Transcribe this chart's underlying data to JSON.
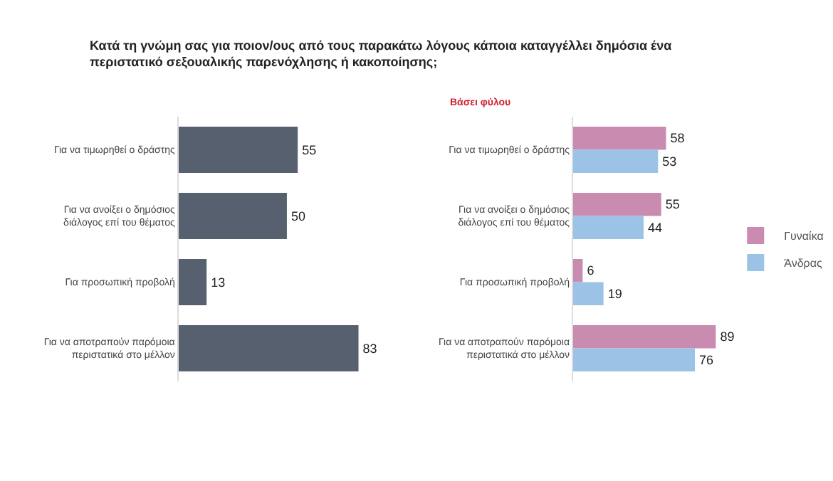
{
  "chart_data": [
    {
      "type": "bar",
      "orientation": "horizontal",
      "title": "Κατά τη γνώμη σας για ποιον/ους από τους παρακάτω λόγους κάποια καταγγέλλει δημόσια ένα περιστατικό σεξουαλικής παρενόχλησης ή κακοποίησης;",
      "categories": [
        "Για να τιμωρηθεί ο δράστης",
        "Για να ανοίξει ο δημόσιος διάλογος επί του θέματος",
        "Για προσωπική προβολή",
        "Για να αποτραπούν παρόμοια περιστατικά στο μέλλον"
      ],
      "values": [
        55,
        50,
        13,
        83
      ],
      "color": "#56606e",
      "data_labels": true,
      "legend": false
    },
    {
      "type": "bar",
      "orientation": "horizontal",
      "subtitle": "Βάσει φύλου",
      "categories": [
        "Για να τιμωρηθεί ο δράστης",
        "Για να ανοίξει ο δημόσιος διάλογος επί του θέματος",
        "Για προσωπική προβολή",
        "Για να αποτραπούν παρόμοια περιστατικά στο μέλλον"
      ],
      "series": [
        {
          "name": "Γυναίκα",
          "color": "#c98bb0",
          "values": [
            58,
            55,
            6,
            89
          ]
        },
        {
          "name": "Άνδρας",
          "color": "#9cc3e6",
          "values": [
            53,
            44,
            19,
            76
          ]
        }
      ],
      "data_labels": true,
      "legend": "right"
    }
  ]
}
